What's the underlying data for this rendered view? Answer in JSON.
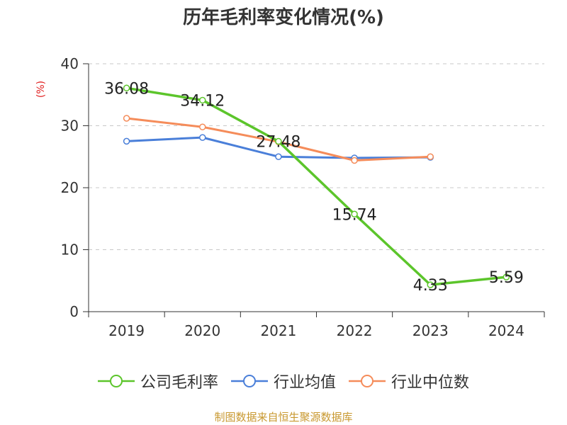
{
  "chart_data": {
    "type": "line",
    "title": "历年毛利率变化情况(%)",
    "ylabel": "(%)",
    "xlabel": "",
    "categories": [
      "2019",
      "2020",
      "2021",
      "2022",
      "2023",
      "2024"
    ],
    "ylim": [
      0,
      40
    ],
    "yticks": [
      0,
      10,
      20,
      30,
      40
    ],
    "grid": true,
    "legend_position": "bottom",
    "series": [
      {
        "name": "公司毛利率",
        "color": "#5cc52b",
        "values": [
          36.08,
          34.12,
          27.48,
          15.74,
          4.33,
          5.59
        ],
        "labels": [
          "36.08",
          "34.12",
          "27.48",
          "15.74",
          "4.33",
          "5.59"
        ]
      },
      {
        "name": "行业均值",
        "color": "#4a7fd9",
        "values": [
          27.5,
          28.1,
          25.0,
          24.8,
          24.9,
          null
        ]
      },
      {
        "name": "行业中位数",
        "color": "#f58c5a",
        "values": [
          31.2,
          29.8,
          27.4,
          24.4,
          25.0,
          null
        ]
      }
    ]
  },
  "source_text": "制图数据来自恒生聚源数据库"
}
